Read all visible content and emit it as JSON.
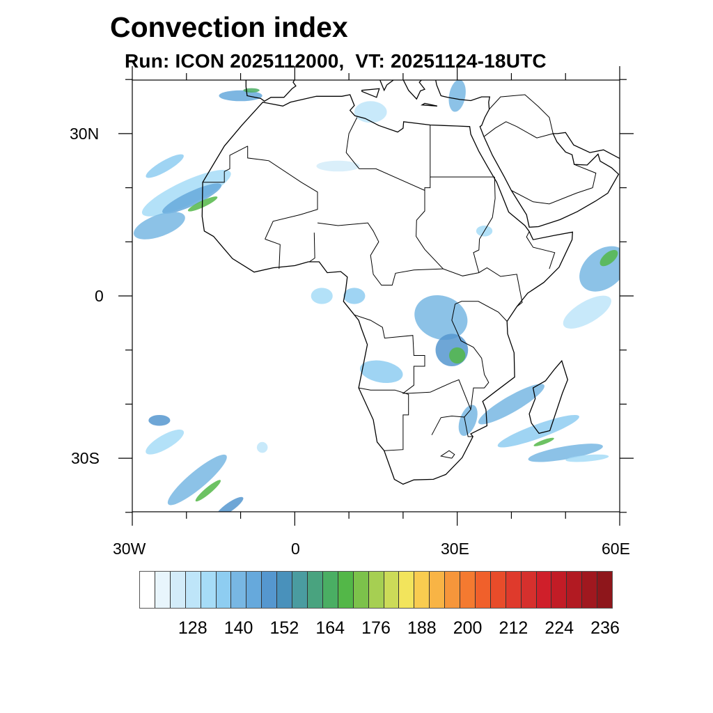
{
  "title": "Convection index",
  "subtitle": "Run: ICON 2025112000,  VT: 20251124-18UTC",
  "axes": {
    "lat_labels": [
      "30N",
      "0",
      "30S"
    ],
    "lon_labels": [
      "30W",
      "0",
      "30E",
      "60E"
    ]
  },
  "colorbar": {
    "colors": [
      "#ffffff",
      "#e8f5fc",
      "#d3ecf9",
      "#bee5f9",
      "#a6dcf7",
      "#8ecdf1",
      "#78b7e3",
      "#66a9dc",
      "#5597cf",
      "#4991bb",
      "#4a9ca0",
      "#49a37f",
      "#4aae63",
      "#53b748",
      "#7cc24b",
      "#a6cf52",
      "#ccdb58",
      "#f2e45c",
      "#f9cc50",
      "#f8b445",
      "#f6963b",
      "#f47a30",
      "#f0602b",
      "#e84c2a",
      "#df3a2c",
      "#d6302d",
      "#cf1f2a",
      "#c21c26",
      "#b21a22",
      "#a0181f",
      "#8e161b"
    ],
    "labels": [
      "128",
      "140",
      "152",
      "164",
      "176",
      "188",
      "200",
      "212",
      "224",
      "236"
    ]
  }
}
